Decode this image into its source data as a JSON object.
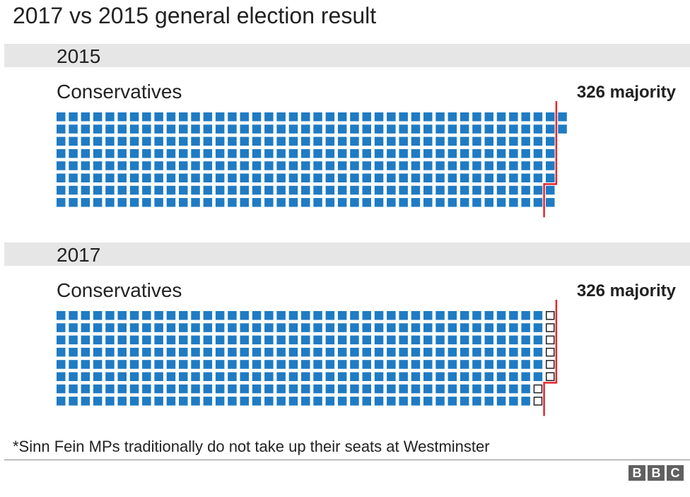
{
  "title": "2017 vs 2015 general election result",
  "footnote": "*Sinn Fein MPs traditionally do not take up their seats at Westminster",
  "logo_letters": [
    "B",
    "B",
    "C"
  ],
  "colors": {
    "seat_fill": "#1f7bc3",
    "gap_seat_outline": "#222222",
    "majority_line": "#e3262d",
    "band_bg": "#e6e6e6"
  },
  "chart_data": [
    {
      "type": "waffle",
      "year_label": "2015",
      "party": "Conservatives",
      "majority_label": "326 majority",
      "majority_threshold": 326,
      "seats": 330,
      "rows": 8,
      "short_of_majority_seats": 0
    },
    {
      "type": "waffle",
      "year_label": "2017",
      "party": "Conservatives",
      "majority_label": "326 majority",
      "majority_threshold": 326,
      "seats": 318,
      "rows": 8,
      "short_of_majority_seats": 8
    }
  ]
}
